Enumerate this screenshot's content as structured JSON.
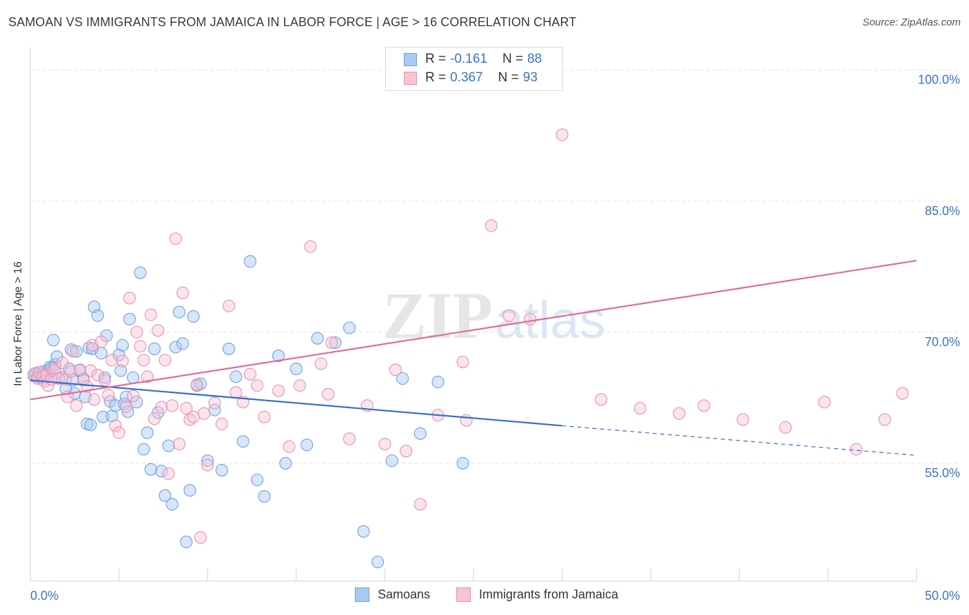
{
  "title": "SAMOAN VS IMMIGRANTS FROM JAMAICA IN LABOR FORCE | AGE > 16 CORRELATION CHART",
  "source": "Source: ZipAtlas.com",
  "watermark": {
    "zip": "ZIP",
    "atlas": "atlas"
  },
  "legend_top": {
    "rows": [
      {
        "r_label": "R =",
        "r_value": "-0.161",
        "n_label": "N =",
        "n_value": "88",
        "color": "#a9c8f4",
        "border": "#6f9fde"
      },
      {
        "r_label": "R =",
        "r_value": "0.367",
        "n_label": "N =",
        "n_value": "93",
        "color": "#f8c3d4",
        "border": "#e890ad"
      }
    ]
  },
  "legend_bottom": [
    {
      "label": "Samoans",
      "color": "#a9c8f4",
      "border": "#6f9fde"
    },
    {
      "label": "Immigrants from Jamaica",
      "color": "#f8c3d4",
      "border": "#e890ad"
    }
  ],
  "chart_data": {
    "type": "scatter",
    "xlabel": "",
    "ylabel": "In Labor Force | Age > 16",
    "x_tick_labels": [
      "0.0%",
      "50.0%"
    ],
    "y_tick_labels": [
      "100.0%",
      "85.0%",
      "70.0%",
      "55.0%"
    ],
    "xlim": [
      0,
      50
    ],
    "ylim": [
      41.5,
      102.5
    ],
    "y_ticks": [
      100,
      85,
      70,
      55
    ],
    "grid": true,
    "series": [
      {
        "name": "Samoans",
        "color": "#6f9fde",
        "fill": "rgba(169,200,244,0.45)",
        "trend": {
          "x": [
            0,
            30
          ],
          "y": [
            64.5,
            59.3
          ],
          "color": "#2f6fcf",
          "dashed_to": [
            50,
            55.9
          ]
        },
        "x": [
          0.2,
          0.3,
          0.4,
          0.5,
          0.6,
          0.7,
          0.8,
          0.9,
          1.0,
          1.1,
          1.2,
          1.3,
          1.4,
          1.5,
          1.6,
          1.8,
          2.0,
          2.2,
          2.3,
          2.4,
          2.5,
          2.6,
          2.8,
          3.0,
          3.1,
          3.2,
          3.3,
          3.4,
          3.5,
          3.6,
          3.8,
          4.0,
          4.1,
          4.2,
          4.3,
          4.5,
          4.6,
          4.8,
          5.0,
          5.1,
          5.2,
          5.3,
          5.4,
          5.5,
          5.6,
          5.8,
          6.0,
          6.2,
          6.4,
          6.6,
          6.8,
          7.0,
          7.2,
          7.4,
          7.6,
          7.8,
          8.0,
          8.2,
          8.4,
          8.6,
          8.8,
          9.0,
          9.2,
          9.4,
          9.6,
          10.0,
          10.4,
          10.8,
          11.2,
          11.6,
          12.0,
          12.4,
          12.8,
          13.2,
          14.0,
          14.4,
          15.0,
          15.6,
          16.2,
          17.2,
          18.0,
          18.8,
          19.6,
          20.4,
          21.0,
          22.0,
          23.0,
          24.4
        ],
        "y": [
          65.0,
          65.3,
          64.9,
          64.8,
          65.2,
          65.5,
          64.7,
          65.1,
          65.6,
          66.0,
          65.9,
          69.1,
          66.3,
          67.2,
          64.7,
          64.8,
          63.5,
          65.8,
          68.0,
          64.5,
          63.0,
          67.8,
          65.6,
          64.7,
          62.6,
          59.5,
          68.2,
          59.4,
          68.1,
          72.9,
          71.9,
          67.6,
          60.3,
          64.8,
          69.6,
          62.1,
          60.4,
          61.6,
          67.4,
          65.6,
          68.5,
          61.8,
          62.6,
          60.9,
          71.5,
          64.8,
          62.0,
          76.8,
          56.6,
          58.5,
          54.3,
          68.1,
          60.8,
          54.1,
          51.3,
          57.0,
          50.3,
          68.3,
          72.3,
          68.7,
          46.0,
          51.9,
          71.8,
          63.9,
          64.1,
          55.3,
          61.1,
          54.2,
          68.1,
          64.9,
          57.5,
          78.1,
          53.1,
          51.2,
          67.3,
          55.0,
          65.8,
          57.1,
          69.3,
          68.8,
          70.5,
          47.2,
          43.7,
          55.3,
          64.7,
          58.4,
          64.3,
          55.0
        ]
      },
      {
        "name": "Immigrants from Jamaica",
        "color": "#e890ad",
        "fill": "rgba(248,195,212,0.45)",
        "trend": {
          "x": [
            0,
            50
          ],
          "y": [
            62.3,
            78.2
          ],
          "color": "#e06b96"
        },
        "x": [
          0.2,
          0.4,
          0.5,
          0.7,
          0.8,
          0.9,
          1.0,
          1.2,
          1.3,
          1.4,
          1.6,
          1.8,
          2.0,
          2.1,
          2.3,
          2.4,
          2.6,
          2.8,
          3.0,
          3.2,
          3.4,
          3.5,
          3.6,
          3.8,
          4.0,
          4.2,
          4.4,
          4.6,
          4.8,
          5.0,
          5.2,
          5.4,
          5.6,
          5.8,
          6.0,
          6.2,
          6.4,
          6.6,
          6.8,
          7.0,
          7.2,
          7.4,
          7.6,
          7.8,
          8.0,
          8.2,
          8.4,
          8.6,
          8.8,
          9.0,
          9.2,
          9.4,
          9.6,
          9.8,
          10.0,
          10.4,
          10.8,
          11.2,
          11.6,
          12.0,
          12.4,
          12.8,
          13.2,
          14.0,
          14.6,
          15.2,
          15.8,
          16.4,
          17.0,
          18.0,
          19.0,
          20.0,
          21.2,
          22.0,
          23.0,
          24.6,
          26.0,
          27.0,
          28.2,
          30.0,
          32.2,
          34.4,
          36.6,
          38.0,
          40.2,
          42.6,
          44.8,
          46.6,
          48.2,
          49.2,
          24.4,
          20.6,
          16.8
        ],
        "y": [
          65.2,
          64.7,
          65.4,
          65.0,
          64.4,
          65.1,
          63.9,
          64.6,
          65.6,
          65.8,
          64.7,
          66.5,
          64.6,
          62.6,
          65.5,
          67.8,
          61.6,
          65.7,
          64.5,
          63.8,
          65.6,
          68.5,
          62.3,
          65.1,
          68.9,
          64.5,
          62.8,
          66.8,
          59.3,
          58.5,
          66.7,
          61.5,
          73.9,
          62.7,
          70.0,
          68.4,
          66.8,
          64.9,
          72.0,
          60.1,
          70.2,
          61.4,
          66.8,
          53.8,
          61.6,
          80.7,
          57.2,
          74.5,
          61.3,
          60.0,
          60.3,
          64.0,
          46.5,
          60.7,
          54.8,
          61.9,
          59.5,
          73.0,
          63.1,
          62.0,
          65.2,
          63.9,
          60.3,
          63.3,
          56.9,
          63.9,
          79.8,
          66.4,
          68.8,
          57.8,
          61.6,
          57.2,
          56.4,
          50.3,
          60.5,
          59.9,
          82.2,
          71.9,
          71.5,
          92.6,
          62.3,
          61.3,
          60.7,
          61.6,
          60.0,
          59.1,
          62.0,
          56.6,
          60.0,
          63.0,
          66.6,
          65.7,
          62.9
        ]
      }
    ]
  }
}
